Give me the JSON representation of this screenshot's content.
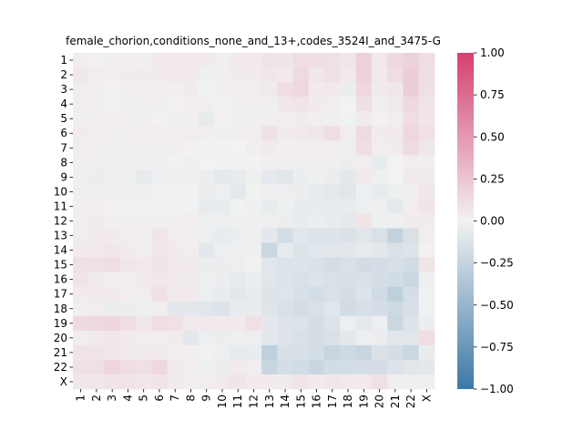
{
  "chart_data": {
    "type": "heatmap",
    "title": "female_chorion,conditions_none_and_13+,codes_3524I_and_3475-G",
    "xlabel": "",
    "ylabel": "",
    "labels": [
      "1",
      "2",
      "3",
      "4",
      "5",
      "6",
      "7",
      "8",
      "9",
      "10",
      "11",
      "12",
      "13",
      "14",
      "15",
      "16",
      "17",
      "18",
      "19",
      "20",
      "21",
      "22",
      "X"
    ],
    "matrix": [
      [
        0.03,
        0.01,
        0.02,
        0.03,
        0.02,
        0.05,
        0.04,
        0.05,
        0.04,
        0.02,
        0.05,
        0.05,
        0.08,
        0.07,
        0.12,
        0.11,
        0.1,
        0.06,
        0.18,
        0.05,
        0.14,
        0.18,
        0.12
      ],
      [
        0.06,
        0.03,
        0.02,
        0.04,
        0.04,
        0.04,
        0.05,
        0.04,
        -0.02,
        0.02,
        0.04,
        0.04,
        0.06,
        0.05,
        0.13,
        0.06,
        0.1,
        0.05,
        0.18,
        0.05,
        0.12,
        0.2,
        0.11
      ],
      [
        0.03,
        0.02,
        0.01,
        0.02,
        0.03,
        0.03,
        0.02,
        0.04,
        -0.01,
        0.02,
        0.03,
        0.03,
        0.05,
        0.12,
        0.15,
        0.04,
        0.05,
        -0.04,
        0.15,
        0.04,
        0.06,
        0.2,
        0.1
      ],
      [
        0.03,
        0.02,
        0.01,
        0.02,
        0.02,
        0.02,
        0.01,
        0.03,
        0.02,
        0.01,
        0.02,
        0.02,
        0.02,
        0.06,
        0.08,
        0.04,
        0.03,
        0.0,
        0.1,
        0.02,
        0.05,
        0.14,
        0.08
      ],
      [
        0.02,
        0.02,
        0.03,
        0.02,
        0.02,
        0.01,
        0.02,
        0.02,
        -0.06,
        0.01,
        0.02,
        0.02,
        0.02,
        0.03,
        0.04,
        0.02,
        0.02,
        -0.01,
        0.04,
        0.01,
        0.03,
        0.12,
        0.07
      ],
      [
        0.04,
        0.03,
        0.02,
        0.02,
        0.03,
        0.03,
        0.02,
        0.03,
        0.02,
        0.02,
        0.02,
        0.03,
        0.09,
        0.04,
        0.05,
        0.06,
        0.12,
        0.03,
        0.13,
        0.04,
        0.05,
        0.15,
        0.1
      ],
      [
        0.03,
        0.02,
        0.02,
        0.02,
        0.02,
        0.02,
        0.02,
        0.01,
        -0.01,
        0.01,
        0.0,
        0.02,
        0.04,
        0.02,
        0.03,
        0.03,
        0.03,
        -0.03,
        0.11,
        0.03,
        0.04,
        0.13,
        0.06
      ],
      [
        0.02,
        0.02,
        0.02,
        0.02,
        0.02,
        0.02,
        0.01,
        0.02,
        0.0,
        0.01,
        0.01,
        0.01,
        0.02,
        0.02,
        0.02,
        0.02,
        0.02,
        -0.04,
        0.03,
        -0.06,
        0.0,
        0.03,
        0.02
      ],
      [
        0.02,
        -0.04,
        -0.03,
        -0.02,
        -0.06,
        -0.03,
        -0.02,
        -0.02,
        -0.04,
        -0.07,
        -0.06,
        -0.02,
        -0.07,
        -0.1,
        -0.04,
        -0.02,
        -0.04,
        -0.08,
        0.05,
        -0.02,
        0.0,
        0.05,
        0.04
      ],
      [
        0.02,
        0.02,
        0.02,
        0.02,
        0.02,
        0.01,
        0.01,
        0.01,
        -0.04,
        -0.03,
        -0.08,
        -0.01,
        -0.03,
        -0.03,
        -0.04,
        -0.06,
        -0.08,
        -0.1,
        -0.03,
        -0.06,
        -0.02,
        0.02,
        0.06
      ],
      [
        0.02,
        0.03,
        0.01,
        0.01,
        0.01,
        0.01,
        0.01,
        -0.01,
        -0.06,
        -0.05,
        -0.01,
        -0.02,
        -0.05,
        -0.02,
        -0.05,
        -0.05,
        -0.06,
        -0.05,
        -0.03,
        -0.02,
        -0.07,
        0.03,
        0.07
      ],
      [
        0.02,
        0.04,
        0.02,
        0.02,
        0.02,
        0.02,
        0.02,
        0.03,
        -0.03,
        -0.03,
        -0.02,
        0.02,
        -0.03,
        -0.04,
        -0.05,
        -0.04,
        -0.05,
        -0.07,
        0.08,
        -0.02,
        -0.02,
        0.04,
        0.04
      ],
      [
        0.03,
        0.05,
        0.04,
        0.03,
        0.02,
        0.07,
        0.03,
        0.02,
        -0.03,
        -0.05,
        -0.04,
        -0.02,
        -0.08,
        -0.17,
        -0.1,
        -0.12,
        -0.12,
        -0.13,
        -0.1,
        -0.14,
        -0.26,
        -0.14,
        0.03
      ],
      [
        0.04,
        0.05,
        0.06,
        0.04,
        0.02,
        0.06,
        0.04,
        0.03,
        -0.08,
        -0.03,
        -0.03,
        -0.02,
        -0.22,
        -0.06,
        -0.12,
        -0.1,
        -0.1,
        -0.09,
        -0.06,
        -0.08,
        -0.13,
        -0.12,
        0.01
      ],
      [
        0.1,
        0.1,
        0.12,
        0.06,
        0.05,
        0.08,
        0.05,
        0.04,
        -0.04,
        -0.04,
        -0.03,
        -0.01,
        -0.1,
        -0.12,
        -0.12,
        -0.13,
        -0.17,
        -0.14,
        -0.18,
        -0.16,
        -0.15,
        -0.18,
        0.08
      ],
      [
        0.08,
        0.04,
        0.03,
        0.03,
        0.04,
        0.06,
        0.04,
        0.04,
        -0.03,
        -0.04,
        -0.06,
        -0.04,
        -0.1,
        -0.12,
        -0.14,
        -0.12,
        -0.14,
        -0.15,
        -0.14,
        -0.16,
        -0.18,
        -0.22,
        -0.02
      ],
      [
        0.04,
        0.05,
        0.04,
        0.03,
        0.03,
        0.1,
        0.05,
        0.04,
        -0.03,
        -0.05,
        -0.08,
        -0.06,
        -0.12,
        -0.11,
        -0.15,
        -0.17,
        -0.14,
        -0.16,
        -0.12,
        -0.19,
        -0.28,
        -0.16,
        -0.01
      ],
      [
        0.02,
        0.03,
        -0.04,
        -0.04,
        -0.02,
        0.02,
        -0.08,
        -0.08,
        -0.1,
        -0.12,
        -0.05,
        -0.05,
        -0.11,
        -0.14,
        -0.17,
        -0.14,
        -0.1,
        -0.18,
        -0.15,
        -0.16,
        -0.2,
        -0.15,
        -0.01
      ],
      [
        0.14,
        0.14,
        0.16,
        0.12,
        0.06,
        0.12,
        0.1,
        0.05,
        0.05,
        0.04,
        0.05,
        0.1,
        -0.08,
        -0.12,
        -0.12,
        -0.16,
        -0.12,
        -0.03,
        -0.07,
        -0.03,
        -0.22,
        -0.12,
        -0.04
      ],
      [
        0.03,
        0.04,
        0.06,
        0.04,
        0.03,
        0.03,
        0.04,
        -0.08,
        -0.03,
        -0.04,
        -0.02,
        -0.03,
        -0.08,
        -0.12,
        -0.14,
        -0.16,
        -0.14,
        -0.08,
        -0.03,
        -0.04,
        -0.1,
        -0.1,
        0.12
      ],
      [
        0.08,
        0.08,
        0.06,
        0.04,
        0.04,
        0.05,
        0.03,
        0.02,
        -0.01,
        -0.03,
        -0.06,
        -0.05,
        -0.28,
        -0.15,
        -0.15,
        -0.17,
        -0.24,
        -0.2,
        -0.24,
        -0.13,
        -0.16,
        -0.22,
        -0.05
      ],
      [
        0.1,
        0.1,
        0.16,
        0.12,
        0.1,
        0.15,
        0.05,
        0.03,
        -0.02,
        -0.04,
        0.04,
        0.03,
        -0.23,
        -0.16,
        -0.18,
        -0.23,
        -0.18,
        -0.17,
        -0.16,
        -0.16,
        -0.12,
        -0.1,
        -0.08
      ],
      [
        0.06,
        0.06,
        0.08,
        0.08,
        0.06,
        0.08,
        0.04,
        0.02,
        0.03,
        0.05,
        0.07,
        0.05,
        0.04,
        0.04,
        0.08,
        0.04,
        0.06,
        0.05,
        0.05,
        0.1,
        0.02,
        0.02,
        0.02
      ]
    ],
    "vmin": -1.0,
    "vmax": 1.0,
    "colorbar_ticks": [
      "1.00",
      "0.75",
      "0.50",
      "0.25",
      "0.00",
      "−0.25",
      "−0.50",
      "−0.75",
      "−1.00"
    ],
    "colormap": {
      "negative": "#3d78a6",
      "center": "#f2f2f2",
      "positive": "#d63f6e"
    },
    "grid": false
  }
}
